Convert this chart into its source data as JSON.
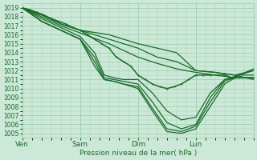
{
  "xlabel": "Pression niveau de la mer( hPa )",
  "xlim": [
    0,
    96
  ],
  "ylim": [
    1004.5,
    1019.5
  ],
  "yticks": [
    1005,
    1006,
    1007,
    1008,
    1009,
    1010,
    1011,
    1012,
    1013,
    1014,
    1015,
    1016,
    1017,
    1018,
    1019
  ],
  "xtick_positions": [
    0,
    24,
    48,
    72
  ],
  "xtick_labels": [
    "Ven",
    "Sam",
    "Dim",
    "Lun"
  ],
  "bg_color": "#cce8d8",
  "grid_color": "#99ccaa",
  "line_color": "#1a6b2a",
  "line_width": 0.9,
  "series": [
    [
      0,
      1019,
      8,
      1018.2,
      16,
      1017.2,
      24,
      1016.5,
      36,
      1016.0,
      48,
      1015.0,
      56,
      1014.5,
      64,
      1014.0,
      72,
      1012.0,
      80,
      1011.8,
      88,
      1011.5,
      96,
      1011.0
    ],
    [
      0,
      1019,
      8,
      1018.2,
      16,
      1017.2,
      24,
      1016.5,
      36,
      1015.5,
      48,
      1014.5,
      56,
      1013.5,
      64,
      1013.0,
      72,
      1012.0,
      80,
      1011.8,
      88,
      1011.5,
      96,
      1012.0
    ],
    [
      0,
      1019,
      8,
      1018.0,
      16,
      1017.0,
      24,
      1016.2,
      36,
      1015.0,
      48,
      1013.5,
      56,
      1012.8,
      64,
      1012.2,
      72,
      1011.8,
      80,
      1011.5,
      88,
      1011.2,
      96,
      1011.2
    ],
    [
      0,
      1019,
      8,
      1017.8,
      16,
      1016.8,
      24,
      1015.8,
      30,
      1014.0,
      34,
      1011.5,
      38,
      1011.2,
      42,
      1011.0,
      48,
      1011.0,
      54,
      1009.5,
      60,
      1007.5,
      66,
      1006.5,
      72,
      1006.8,
      78,
      1009.5,
      84,
      1011.0,
      90,
      1011.2,
      96,
      1011.2
    ],
    [
      0,
      1019,
      8,
      1017.5,
      16,
      1016.5,
      24,
      1015.5,
      30,
      1013.5,
      34,
      1011.2,
      38,
      1011.0,
      42,
      1010.8,
      48,
      1010.5,
      54,
      1008.5,
      60,
      1006.2,
      66,
      1005.5,
      72,
      1006.0,
      78,
      1009.0,
      84,
      1011.0,
      90,
      1011.5,
      96,
      1011.5
    ],
    [
      0,
      1019,
      8,
      1017.5,
      16,
      1016.5,
      24,
      1015.5,
      30,
      1013.0,
      34,
      1011.0,
      38,
      1010.8,
      42,
      1010.5,
      48,
      1010.2,
      54,
      1007.8,
      60,
      1005.5,
      66,
      1005.2,
      72,
      1005.8,
      78,
      1008.5,
      84,
      1010.8,
      90,
      1011.5,
      96,
      1012.0
    ],
    [
      0,
      1019,
      8,
      1017.5,
      16,
      1016.5,
      24,
      1015.5,
      30,
      1012.5,
      34,
      1011.0,
      38,
      1010.8,
      42,
      1010.5,
      48,
      1010.0,
      54,
      1007.5,
      60,
      1005.2,
      66,
      1005.0,
      72,
      1005.5,
      78,
      1008.0,
      84,
      1010.5,
      90,
      1011.5,
      96,
      1012.2
    ]
  ],
  "dense_series": [
    [
      0,
      1019,
      3,
      1018.8,
      6,
      1018.5,
      9,
      1018.2,
      12,
      1017.8,
      15,
      1017.5,
      18,
      1017.2,
      21,
      1016.8,
      24,
      1016.5,
      27,
      1016.0,
      30,
      1015.5,
      33,
      1015.0,
      36,
      1014.5,
      39,
      1013.5,
      42,
      1013.0,
      45,
      1012.5,
      48,
      1011.5,
      51,
      1011.0,
      54,
      1010.5,
      57,
      1010.2,
      60,
      1010.0,
      63,
      1010.2,
      66,
      1010.5,
      69,
      1011.0,
      72,
      1011.5,
      75,
      1011.5,
      78,
      1011.5,
      81,
      1011.5,
      84,
      1011.5,
      87,
      1011.2,
      90,
      1011.2,
      93,
      1011.2,
      96,
      1011.2
    ]
  ]
}
